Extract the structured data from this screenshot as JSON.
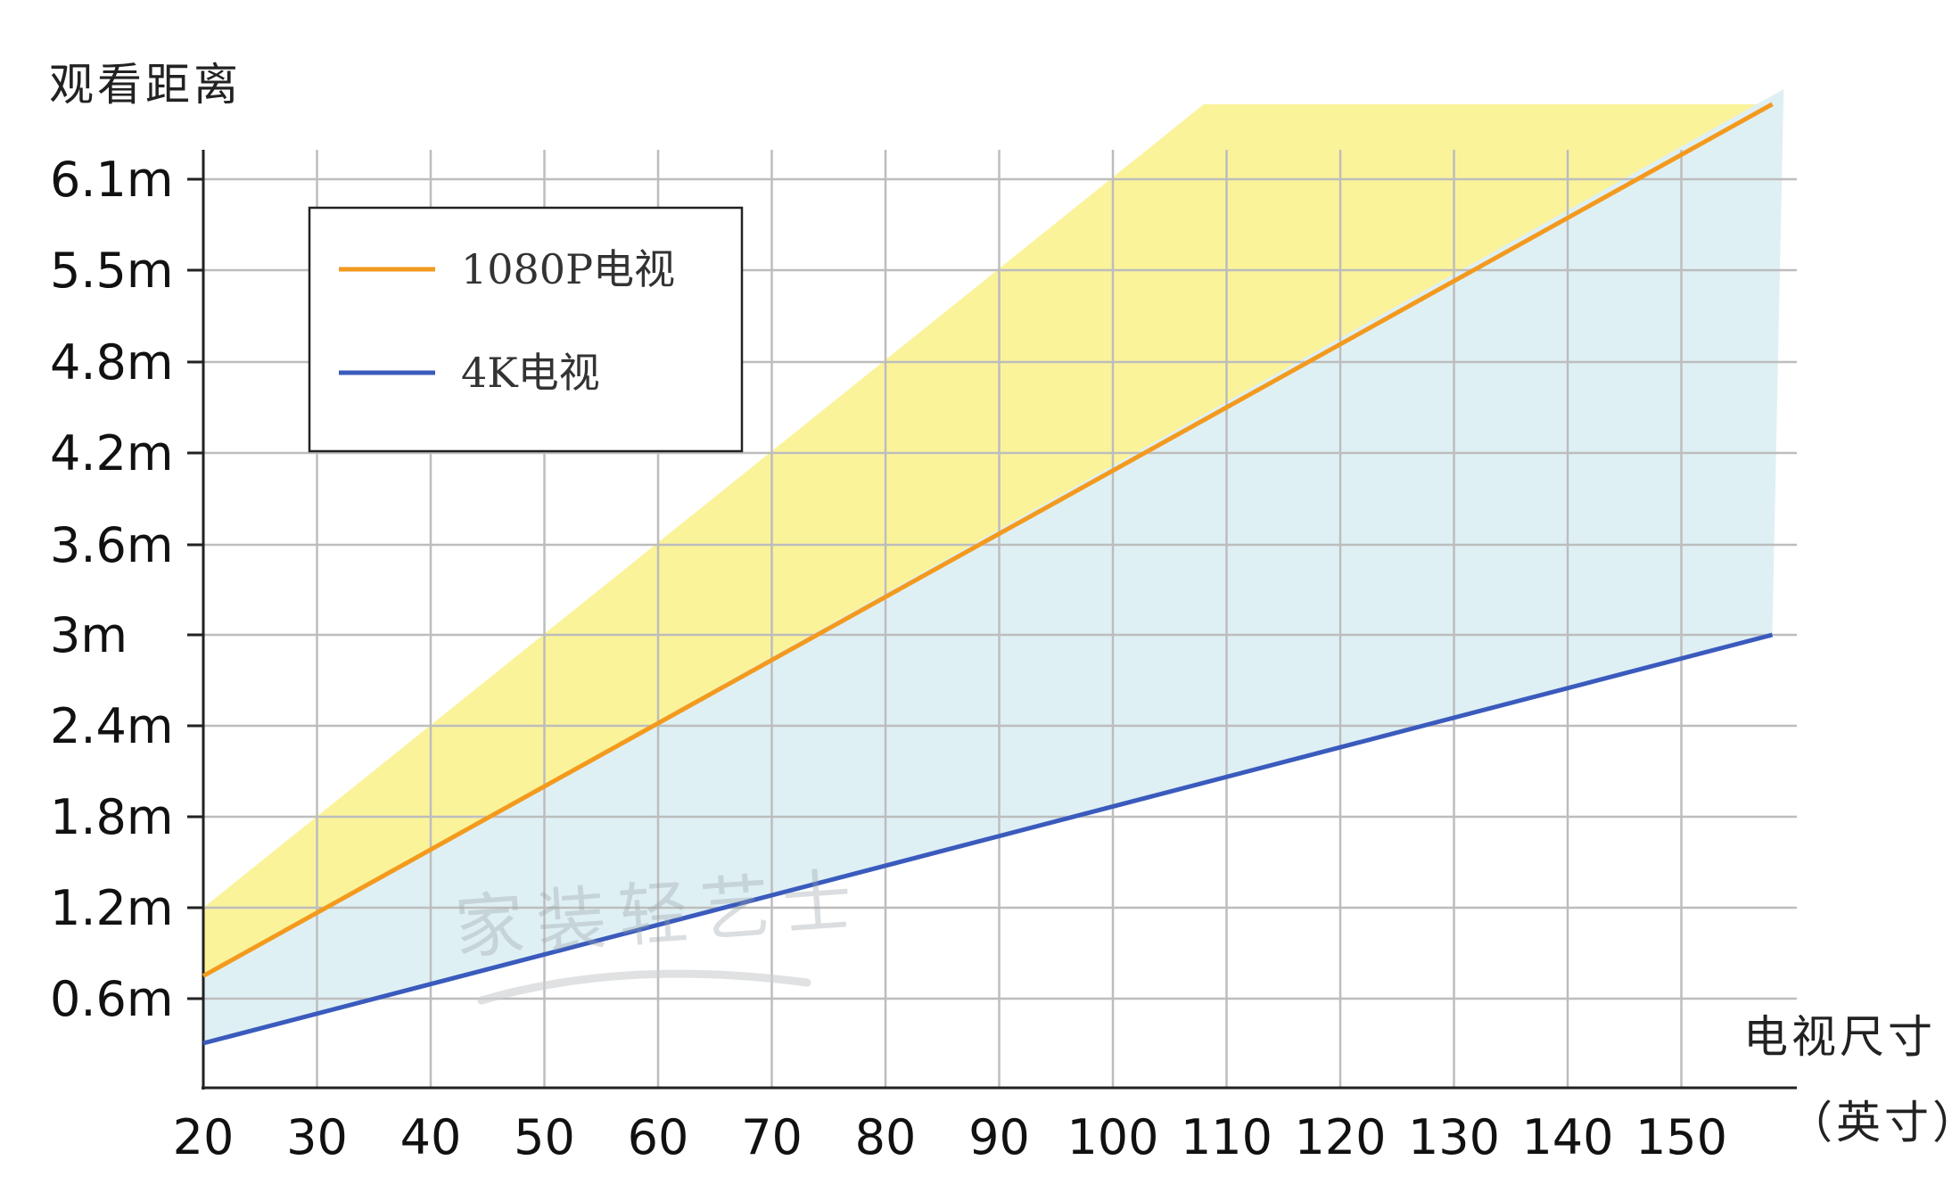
{
  "chart_data": {
    "type": "line",
    "ylabel": "观看距离",
    "xlabel": "电视尺寸",
    "xlabel_unit": "（英寸）",
    "x_ticks": [
      20,
      30,
      40,
      50,
      60,
      70,
      80,
      90,
      100,
      110,
      120,
      130,
      140,
      150
    ],
    "y_ticks": [
      {
        "value": 0.6,
        "label": "0.6m"
      },
      {
        "value": 1.2,
        "label": "1.2m"
      },
      {
        "value": 1.8,
        "label": "1.8m"
      },
      {
        "value": 2.4,
        "label": "2.4m"
      },
      {
        "value": 3.0,
        "label": "3m"
      },
      {
        "value": 3.6,
        "label": "3.6m"
      },
      {
        "value": 4.2,
        "label": "4.2m"
      },
      {
        "value": 4.8,
        "label": "4.8m"
      },
      {
        "value": 5.5,
        "label": "5.5m"
      },
      {
        "value": 6.1,
        "label": "6.1m"
      }
    ],
    "xlim": [
      20,
      158
    ],
    "ylim": [
      0,
      6.3
    ],
    "grid": true,
    "legend_position": "top-left",
    "series": [
      {
        "name": "1080P电视",
        "color": "#f39a1e",
        "x": [
          20,
          158
        ],
        "y": [
          0.75,
          6.6
        ]
      },
      {
        "name": "4K电视",
        "color": "#3a5bbd",
        "x": [
          20,
          158
        ],
        "y": [
          0.3,
          3.0
        ]
      }
    ],
    "bands": [
      {
        "color": "#fbf39a",
        "upper_x": [
          20,
          108,
          158
        ],
        "upper_y": [
          1.2,
          6.6,
          6.6
        ],
        "lower_x": [
          20,
          158
        ],
        "lower_y": [
          0.75,
          6.6
        ]
      },
      {
        "color": "#dff0f4",
        "upper_x": [
          20,
          159
        ],
        "upper_y": [
          0.75,
          6.7
        ],
        "lower_x": [
          20,
          158
        ],
        "lower_y": [
          0.3,
          3.0
        ]
      }
    ],
    "watermark": "家装轻艺士"
  }
}
